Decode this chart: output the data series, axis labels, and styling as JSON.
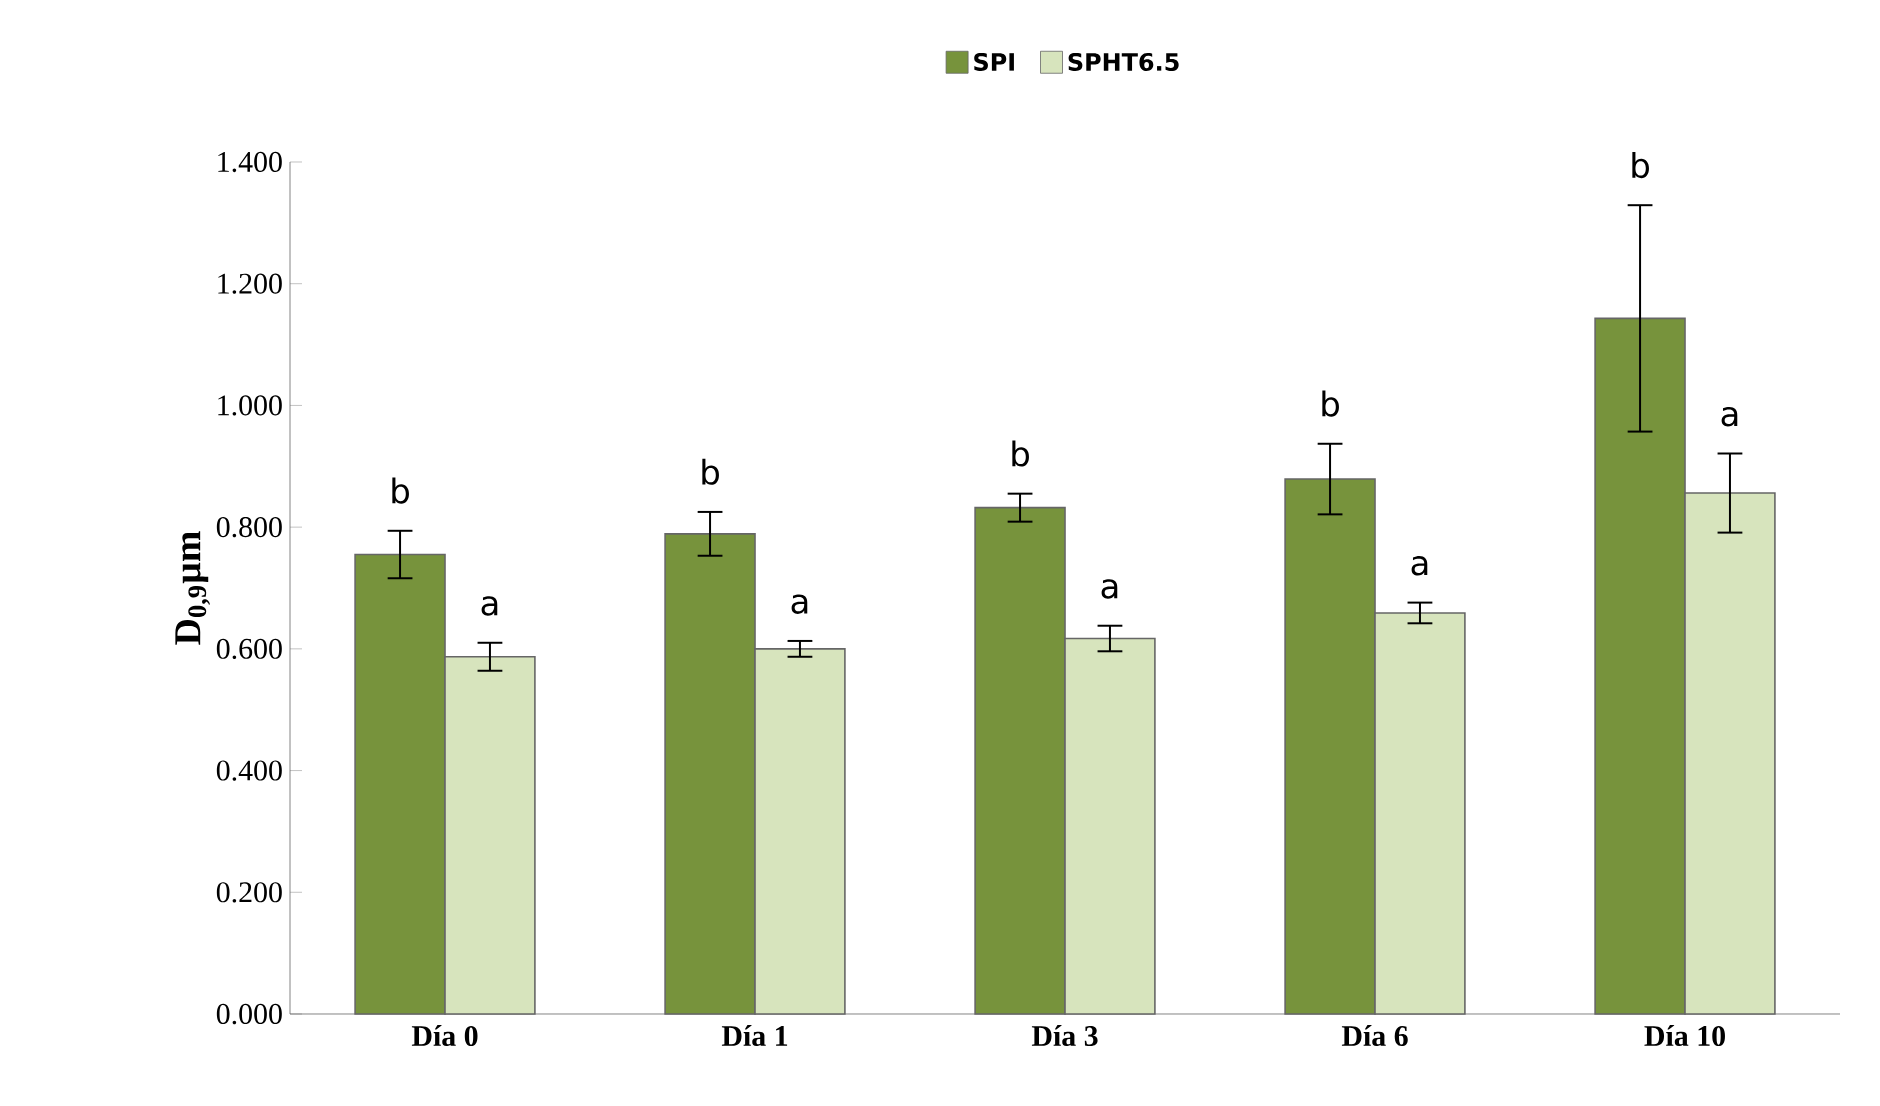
{
  "chart_data": {
    "type": "bar",
    "ylabel": "D$_{0,9}$µm",
    "categories": [
      "Día 0",
      "Día 1",
      "Día 3",
      "Día 6",
      "Día 10"
    ],
    "series": [
      {
        "name": "SPI",
        "color": "#77933c",
        "values": [
          0.755,
          0.789,
          0.832,
          0.879,
          1.143
        ],
        "errors": [
          0.039,
          0.036,
          0.023,
          0.058,
          0.186
        ]
      },
      {
        "name": "SPHT6.5",
        "color": "#d7e4bd",
        "values": [
          0.587,
          0.6,
          0.617,
          0.659,
          0.856
        ],
        "errors": [
          0.023,
          0.013,
          0.021,
          0.017,
          0.065
        ]
      }
    ],
    "ylim": [
      0,
      1.4
    ],
    "yticks": [
      {
        "value": 0,
        "label": "0.000"
      },
      {
        "value": 0.2,
        "label": "0.200"
      },
      {
        "value": 0.4,
        "label": "0.400"
      },
      {
        "value": 0.6,
        "label": "0.600"
      },
      {
        "value": 0.8,
        "label": "0.800"
      },
      {
        "value": 1.0,
        "label": "1.000"
      },
      {
        "value": 1.2,
        "label": "1.200"
      },
      {
        "value": 1.4,
        "label": "1.400"
      }
    ],
    "annotations": [
      "b",
      "a",
      "b",
      "a",
      "b",
      "a",
      "b",
      "a",
      "b",
      "a"
    ],
    "grid": false,
    "legend": "top"
  }
}
